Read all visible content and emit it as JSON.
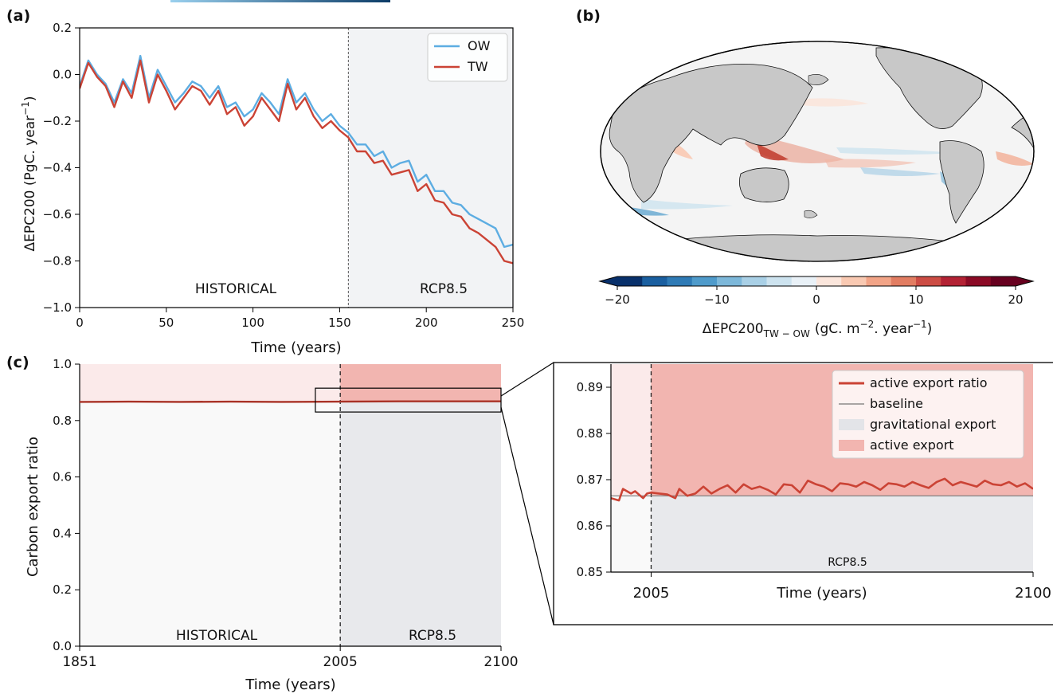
{
  "panels": {
    "a": {
      "label": "(a)",
      "ylabel_main": "ΔEPC200 (PgC. year",
      "ylabel_sup": "−1",
      "ylabel_end": ")",
      "xlabel": "Time (years)",
      "region_left": "HISTORICAL",
      "region_right": "RCP8.5"
    },
    "b": {
      "label": "(b)",
      "cbar_main": "ΔEPC200",
      "cbar_sub": "TW − OW",
      "cbar_unit_a": "(gC. m",
      "cbar_unit_sup1": "−2",
      "cbar_unit_b": ". year",
      "cbar_unit_sup2": "−1",
      "cbar_unit_c": ")"
    },
    "c": {
      "label": "(c)",
      "ylabel": "Carbon export ratio",
      "xlabel": "Time (years)",
      "region_left": "HISTORICAL",
      "region_right": "RCP8.5"
    },
    "inset": {
      "xlabel": "Time (years)",
      "region": "RCP8.5"
    }
  },
  "colors": {
    "ow": "#5dade2",
    "tw": "#cb4335",
    "shade_rcp_a": "#f2f3f5",
    "hist_active": "#fbeaea",
    "rcp_active": "#f2b5b0",
    "hist_grav": "#f9f9f9",
    "rcp_grav": "#e8e9ec",
    "land": "#c8c8c8",
    "ocean": "#f4f4f4"
  },
  "chart_data": [
    {
      "type": "line",
      "panel": "a",
      "xlim": [
        0,
        250
      ],
      "ylim": [
        -1.0,
        0.2
      ],
      "xticks": [
        0,
        50,
        100,
        150,
        200,
        250
      ],
      "yticks": [
        -1.0,
        -0.8,
        -0.6,
        -0.4,
        -0.2,
        0.0,
        0.2
      ],
      "xtick_labels": [
        "0",
        "50",
        "100",
        "150",
        "200",
        "250"
      ],
      "ytick_labels": [
        "−1.0",
        "−0.8",
        "−0.6",
        "−0.4",
        "−0.2",
        "0.0",
        "0.2"
      ],
      "divider_x": 155,
      "legend": "top-right",
      "series": [
        {
          "name": "OW",
          "x": [
            0,
            5,
            10,
            15,
            20,
            25,
            30,
            35,
            40,
            45,
            50,
            55,
            60,
            65,
            70,
            75,
            80,
            85,
            90,
            95,
            100,
            105,
            110,
            115,
            120,
            125,
            130,
            135,
            140,
            145,
            150,
            155,
            160,
            165,
            170,
            175,
            180,
            185,
            190,
            195,
            200,
            205,
            210,
            215,
            220,
            225,
            230,
            235,
            240,
            245,
            250
          ],
          "values": [
            -0.05,
            0.06,
            0.0,
            -0.04,
            -0.12,
            -0.02,
            -0.08,
            0.08,
            -0.1,
            0.02,
            -0.05,
            -0.12,
            -0.08,
            -0.03,
            -0.05,
            -0.1,
            -0.05,
            -0.14,
            -0.12,
            -0.18,
            -0.15,
            -0.08,
            -0.12,
            -0.17,
            -0.02,
            -0.12,
            -0.08,
            -0.15,
            -0.2,
            -0.17,
            -0.22,
            -0.25,
            -0.3,
            -0.3,
            -0.35,
            -0.33,
            -0.4,
            -0.38,
            -0.37,
            -0.46,
            -0.43,
            -0.5,
            -0.5,
            -0.55,
            -0.56,
            -0.6,
            -0.62,
            -0.64,
            -0.66,
            -0.74,
            -0.73
          ]
        },
        {
          "name": "TW",
          "x": [
            0,
            5,
            10,
            15,
            20,
            25,
            30,
            35,
            40,
            45,
            50,
            55,
            60,
            65,
            70,
            75,
            80,
            85,
            90,
            95,
            100,
            105,
            110,
            115,
            120,
            125,
            130,
            135,
            140,
            145,
            150,
            155,
            160,
            165,
            170,
            175,
            180,
            185,
            190,
            195,
            200,
            205,
            210,
            215,
            220,
            225,
            230,
            235,
            240,
            245,
            250
          ],
          "values": [
            -0.06,
            0.05,
            -0.01,
            -0.05,
            -0.14,
            -0.03,
            -0.1,
            0.06,
            -0.12,
            0.0,
            -0.07,
            -0.15,
            -0.1,
            -0.05,
            -0.07,
            -0.13,
            -0.07,
            -0.17,
            -0.14,
            -0.22,
            -0.18,
            -0.1,
            -0.15,
            -0.2,
            -0.04,
            -0.15,
            -0.1,
            -0.18,
            -0.23,
            -0.2,
            -0.24,
            -0.27,
            -0.33,
            -0.33,
            -0.38,
            -0.37,
            -0.43,
            -0.42,
            -0.41,
            -0.5,
            -0.47,
            -0.54,
            -0.55,
            -0.6,
            -0.61,
            -0.66,
            -0.68,
            -0.71,
            -0.74,
            -0.8,
            -0.81
          ]
        }
      ]
    },
    {
      "type": "heatmap",
      "panel": "b",
      "colorbar_range": [
        -20,
        20
      ],
      "colorbar_ticks": [
        -20,
        -10,
        0,
        10,
        20
      ],
      "colorbar_tick_labels": [
        "−20",
        "−10",
        "0",
        "10",
        "20"
      ],
      "colorbar_colors": [
        "#08306b",
        "#1a5fa0",
        "#2f7bb6",
        "#4f9bcb",
        "#7db8da",
        "#a9d0e6",
        "#cde3ef",
        "#e9f1f7",
        "#fbe6dc",
        "#f9c9b2",
        "#f2a487",
        "#e27d62",
        "#cc4c44",
        "#b32234",
        "#8b0a25",
        "#67001f"
      ]
    },
    {
      "type": "line",
      "panel": "c",
      "xlim": [
        1851,
        2100
      ],
      "ylim": [
        0.0,
        1.0
      ],
      "xticks": [
        1851,
        2005,
        2100
      ],
      "xtick_labels": [
        "1851",
        "2005",
        "2100"
      ],
      "yticks": [
        0.0,
        0.2,
        0.4,
        0.6,
        0.8,
        1.0
      ],
      "ytick_labels": [
        "0.0",
        "0.2",
        "0.4",
        "0.6",
        "0.8",
        "1.0"
      ],
      "divider_x": 2005,
      "baseline": 0.8665,
      "series": [
        {
          "name": "active export ratio",
          "x": [
            1851,
            1880,
            1910,
            1940,
            1970,
            2005,
            2040,
            2070,
            2100
          ],
          "values": [
            0.866,
            0.867,
            0.866,
            0.867,
            0.866,
            0.867,
            0.868,
            0.868,
            0.868
          ]
        }
      ]
    },
    {
      "type": "line",
      "panel": "inset",
      "xlim": [
        1995,
        2100
      ],
      "ylim": [
        0.85,
        0.895
      ],
      "xticks": [
        2005,
        2100
      ],
      "xtick_labels": [
        "2005",
        "2100"
      ],
      "yticks": [
        0.85,
        0.86,
        0.87,
        0.88,
        0.89
      ],
      "ytick_labels": [
        "0.85",
        "0.86",
        "0.87",
        "0.88",
        "0.89"
      ],
      "divider_x": 2005,
      "baseline": 0.8665,
      "legend": "top-right",
      "legend_labels": [
        "active export ratio",
        "baseline",
        "gravitational export",
        "active export"
      ],
      "series": [
        {
          "name": "active export ratio",
          "x": [
            1995,
            1997,
            1998,
            2000,
            2001,
            2003,
            2004,
            2005,
            2007,
            2009,
            2011,
            2012,
            2014,
            2016,
            2018,
            2020,
            2022,
            2024,
            2026,
            2028,
            2030,
            2032,
            2034,
            2036,
            2038,
            2040,
            2042,
            2044,
            2046,
            2048,
            2050,
            2052,
            2054,
            2056,
            2058,
            2060,
            2062,
            2064,
            2066,
            2068,
            2070,
            2072,
            2074,
            2076,
            2078,
            2080,
            2082,
            2084,
            2086,
            2088,
            2090,
            2092,
            2094,
            2096,
            2098,
            2100
          ],
          "values": [
            0.866,
            0.8655,
            0.868,
            0.867,
            0.8675,
            0.866,
            0.867,
            0.8672,
            0.867,
            0.8668,
            0.866,
            0.868,
            0.8665,
            0.867,
            0.8685,
            0.867,
            0.868,
            0.8688,
            0.8672,
            0.869,
            0.868,
            0.8685,
            0.8678,
            0.8668,
            0.869,
            0.8688,
            0.8672,
            0.8698,
            0.869,
            0.8685,
            0.8675,
            0.8692,
            0.869,
            0.8685,
            0.8695,
            0.8688,
            0.8678,
            0.8692,
            0.869,
            0.8685,
            0.8695,
            0.8688,
            0.8682,
            0.8695,
            0.8702,
            0.8688,
            0.8695,
            0.869,
            0.8685,
            0.8698,
            0.869,
            0.8688,
            0.8695,
            0.8685,
            0.8692,
            0.868
          ]
        }
      ]
    }
  ]
}
